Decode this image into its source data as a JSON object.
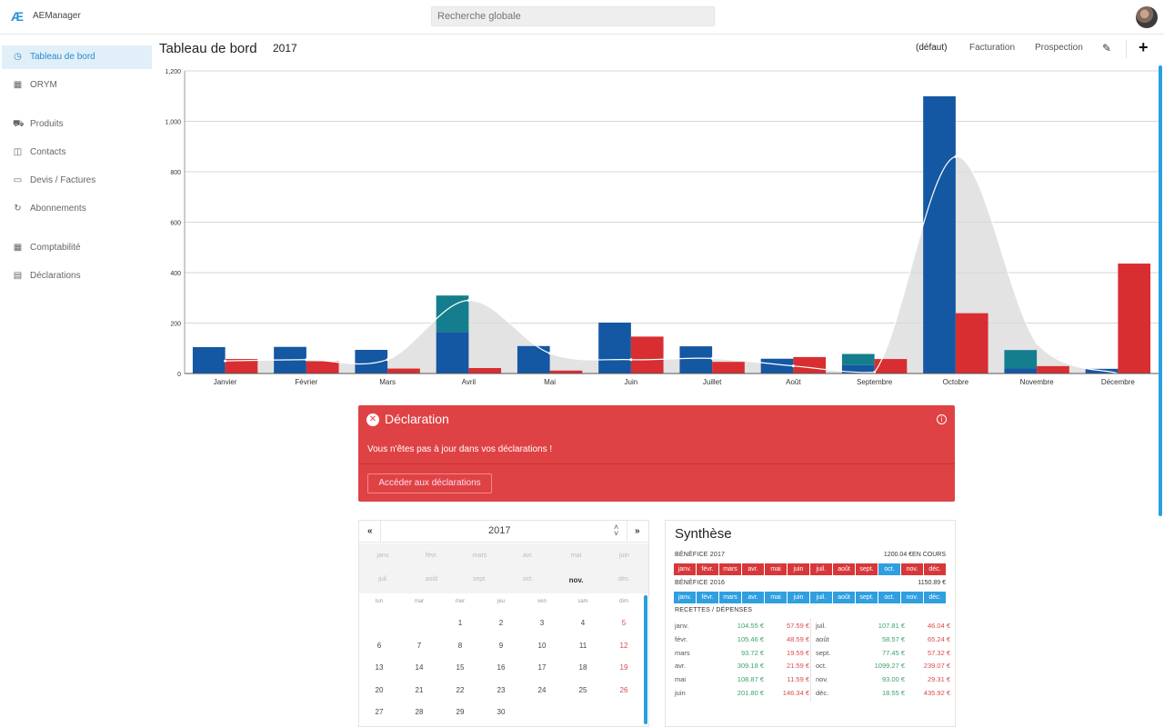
{
  "topbar": {
    "logo": "Æ",
    "app_name": "AEManager",
    "search_placeholder": "Recherche globale"
  },
  "sidebar": {
    "items": [
      {
        "label": "Tableau de bord",
        "icon": "dashboard-icon",
        "glyph": "◷",
        "active": true
      },
      {
        "label": "ORYM",
        "icon": "store-icon",
        "glyph": "▦",
        "active": false
      },
      {
        "label": "Produits",
        "icon": "cart-icon",
        "glyph": "⛟",
        "active": false
      },
      {
        "label": "Contacts",
        "icon": "contact-card-icon",
        "glyph": "◫",
        "active": false
      },
      {
        "label": "Devis / Factures",
        "icon": "invoice-icon",
        "glyph": "▭",
        "active": false
      },
      {
        "label": "Abonnements",
        "icon": "refresh-icon",
        "glyph": "↻",
        "active": false
      },
      {
        "label": "Comptabilité",
        "icon": "ledger-icon",
        "glyph": "▦",
        "active": false
      },
      {
        "label": "Déclarations",
        "icon": "declaration-icon",
        "glyph": "▤",
        "active": false
      }
    ]
  },
  "header": {
    "title": "Tableau de bord",
    "year": "2017",
    "tabs": [
      {
        "label": "(défaut)",
        "selected": true
      },
      {
        "label": "Facturation",
        "selected": false
      },
      {
        "label": "Prospection",
        "selected": false
      }
    ],
    "edit_glyph": "✎",
    "add_glyph": "+"
  },
  "chart_data": {
    "type": "bar",
    "categories": [
      "Janvier",
      "Février",
      "Mars",
      "Avril",
      "Mai",
      "Juin",
      "Juillet",
      "Août",
      "Septembre",
      "Octobre",
      "Novembre",
      "Décembre"
    ],
    "ylim": [
      0,
      1200
    ],
    "yticks": [
      "0",
      "200",
      "400",
      "600",
      "800",
      "1,000",
      "1,200"
    ],
    "grid": true,
    "colors": {
      "blue": "#1457a3",
      "teal": "#147e8e",
      "red": "#d82e31",
      "area": "#d9d9d9",
      "line": "#ffffff"
    },
    "series": [
      {
        "values": [
          104.55,
          105.46,
          93.72,
          165,
          108.87,
          201.8,
          107.81,
          58.57,
          33,
          1099.27,
          20,
          18.55
        ],
        "color": "blue"
      },
      {
        "values": [
          0,
          0,
          0,
          144.18,
          0,
          0,
          0,
          0,
          44.45,
          0,
          73,
          0
        ],
        "color": "teal"
      },
      {
        "values": [
          57.59,
          48.59,
          19.59,
          21.59,
          11.59,
          146.34,
          46.04,
          65.24,
          57.32,
          239.07,
          29.31,
          435.92
        ],
        "color": "red"
      }
    ],
    "trend": [
      50,
      55,
      55,
      290,
      80,
      55,
      60,
      30,
      5,
      860,
      120,
      -20
    ]
  },
  "declaration": {
    "title": "Déclaration",
    "message": "Vous n'êtes pas à jour dans vos déclarations !",
    "button": "Accéder aux déclarations",
    "close_glyph": "✕",
    "info_glyph": "i"
  },
  "calendar": {
    "year": "2017",
    "prev": "«",
    "next": "»",
    "months": [
      "janv.",
      "févr.",
      "mars",
      "avr.",
      "mai",
      "juin",
      "juil.",
      "août",
      "sept.",
      "oct.",
      "nov.",
      "déc."
    ],
    "current_month": "nov.",
    "weekdays": [
      "lun",
      "mar",
      "mer",
      "jeu",
      "ven",
      "sam",
      "dim"
    ],
    "first_day_offset": 2,
    "days_in_month": 30
  },
  "synthese": {
    "title": "Synthèse",
    "benefice_2017_label": "BÉNÉFICE 2017",
    "benefice_2017_value": "1200.04 €EN COURS",
    "benefice_2016_label": "BÉNÉFICE 2016",
    "benefice_2016_value": "1150.89 €",
    "months": [
      "janv.",
      "févr.",
      "mars",
      "avr.",
      "mai",
      "juin",
      "juil.",
      "août",
      "sept.",
      "oct.",
      "nov.",
      "déc."
    ],
    "bar_2017_colors": [
      "red",
      "red",
      "red",
      "red",
      "red",
      "red",
      "red",
      "red",
      "red",
      "blue",
      "red",
      "red"
    ],
    "bar_2016_colors": [
      "blue",
      "blue",
      "blue",
      "blue",
      "blue",
      "blue",
      "blue",
      "blue",
      "blue",
      "blue",
      "blue",
      "blue"
    ],
    "rd_label": "RECETTES / DÉPENSES",
    "left": [
      {
        "m": "janv.",
        "r": "104.55 €",
        "d": "57.59 €"
      },
      {
        "m": "févr.",
        "r": "105.46 €",
        "d": "48.59 €"
      },
      {
        "m": "mars",
        "r": "93.72 €",
        "d": "19.59 €"
      },
      {
        "m": "avr.",
        "r": "309.18 €",
        "d": "21.59 €"
      },
      {
        "m": "mai",
        "r": "108.87 €",
        "d": "11.59 €"
      },
      {
        "m": "juin",
        "r": "201.80 €",
        "d": "146.34 €"
      }
    ],
    "right": [
      {
        "m": "juil.",
        "r": "107.81 €",
        "d": "46.04 €"
      },
      {
        "m": "août",
        "r": "58.57 €",
        "d": "65.24 €"
      },
      {
        "m": "sept.",
        "r": "77.45 €",
        "d": "57.32 €"
      },
      {
        "m": "oct.",
        "r": "1099.27 €",
        "d": "239.07 €"
      },
      {
        "m": "nov.",
        "r": "93.00 €",
        "d": "29.31 €"
      },
      {
        "m": "déc.",
        "r": "18.55 €",
        "d": "435.92 €"
      }
    ]
  }
}
